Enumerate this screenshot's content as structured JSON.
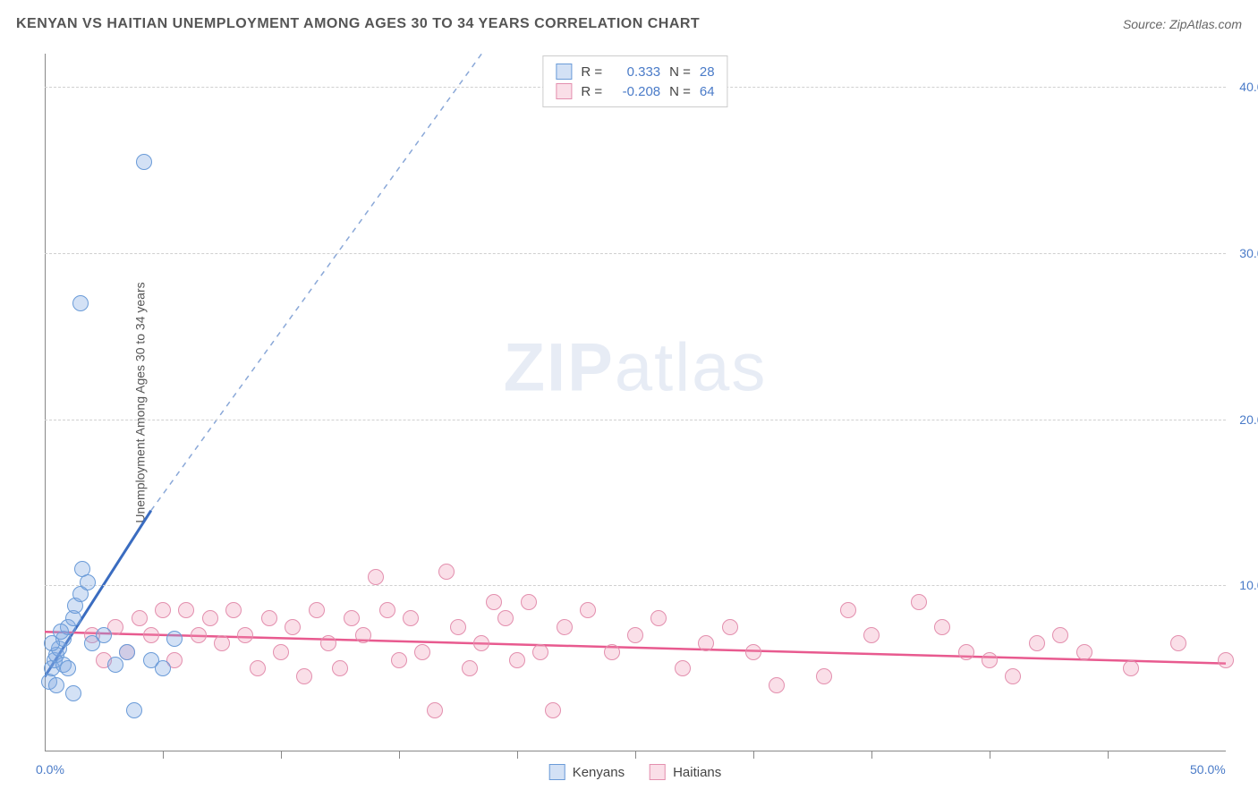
{
  "title": "KENYAN VS HAITIAN UNEMPLOYMENT AMONG AGES 30 TO 34 YEARS CORRELATION CHART",
  "source": "Source: ZipAtlas.com",
  "y_axis_label": "Unemployment Among Ages 30 to 34 years",
  "watermark": {
    "part1": "ZIP",
    "part2": "atlas"
  },
  "colors": {
    "series_a_fill": "rgba(130,170,225,0.35)",
    "series_a_stroke": "#6a9bd8",
    "series_b_fill": "rgba(240,150,180,0.30)",
    "series_b_stroke": "#e38fae",
    "trend_a": "#3a6cc0",
    "trend_a_dash": "#8aa8d8",
    "trend_b": "#e85a8f",
    "axis_text": "#4a7bc8",
    "grid": "#d0d0d0",
    "title_color": "#555555"
  },
  "chart": {
    "type": "scatter",
    "xlim": [
      0,
      50
    ],
    "ylim": [
      0,
      42
    ],
    "x_ticks": [
      0,
      50
    ],
    "x_minor_ticks": [
      5,
      10,
      15,
      20,
      25,
      30,
      35,
      40,
      45
    ],
    "y_ticks": [
      10,
      20,
      30,
      40
    ],
    "marker_radius": 9,
    "marker_stroke_width": 1.5
  },
  "series_a": {
    "name": "Kenyans",
    "r_label": "R =",
    "r_value": "0.333",
    "n_label": "N =",
    "n_value": "28",
    "points": [
      [
        0.2,
        4.2
      ],
      [
        0.3,
        5.0
      ],
      [
        0.4,
        5.5
      ],
      [
        0.5,
        5.8
      ],
      [
        0.6,
        6.2
      ],
      [
        0.8,
        6.8
      ],
      [
        1.0,
        7.5
      ],
      [
        1.2,
        8.0
      ],
      [
        1.3,
        8.8
      ],
      [
        1.5,
        9.5
      ],
      [
        1.6,
        11.0
      ],
      [
        1.8,
        10.2
      ],
      [
        2.0,
        6.5
      ],
      [
        0.5,
        4.0
      ],
      [
        0.8,
        5.2
      ],
      [
        1.0,
        5.0
      ],
      [
        2.5,
        7.0
      ],
      [
        3.0,
        5.2
      ],
      [
        3.5,
        6.0
      ],
      [
        3.8,
        2.5
      ],
      [
        4.5,
        5.5
      ],
      [
        5.0,
        5.0
      ],
      [
        5.5,
        6.8
      ],
      [
        1.2,
        3.5
      ],
      [
        0.3,
        6.5
      ],
      [
        1.5,
        27.0
      ],
      [
        4.2,
        35.5
      ],
      [
        0.7,
        7.2
      ]
    ],
    "trend": {
      "solid_from": [
        0,
        4.5
      ],
      "solid_to": [
        4.5,
        14.5
      ],
      "dash_to": [
        18.5,
        42
      ]
    }
  },
  "series_b": {
    "name": "Haitians",
    "r_label": "R =",
    "r_value": "-0.208",
    "n_label": "N =",
    "n_value": "64",
    "points": [
      [
        2.0,
        7.0
      ],
      [
        2.5,
        5.5
      ],
      [
        3.0,
        7.5
      ],
      [
        3.5,
        6.0
      ],
      [
        4.0,
        8.0
      ],
      [
        4.5,
        7.0
      ],
      [
        5.0,
        8.5
      ],
      [
        5.5,
        5.5
      ],
      [
        6.0,
        8.5
      ],
      [
        6.5,
        7.0
      ],
      [
        7.0,
        8.0
      ],
      [
        7.5,
        6.5
      ],
      [
        8.0,
        8.5
      ],
      [
        8.5,
        7.0
      ],
      [
        9.0,
        5.0
      ],
      [
        9.5,
        8.0
      ],
      [
        10.0,
        6.0
      ],
      [
        10.5,
        7.5
      ],
      [
        11.0,
        4.5
      ],
      [
        11.5,
        8.5
      ],
      [
        12.0,
        6.5
      ],
      [
        12.5,
        5.0
      ],
      [
        13.0,
        8.0
      ],
      [
        13.5,
        7.0
      ],
      [
        14.0,
        10.5
      ],
      [
        14.5,
        8.5
      ],
      [
        15.0,
        5.5
      ],
      [
        15.5,
        8.0
      ],
      [
        16.0,
        6.0
      ],
      [
        16.5,
        2.5
      ],
      [
        17.0,
        10.8
      ],
      [
        17.5,
        7.5
      ],
      [
        18.0,
        5.0
      ],
      [
        18.5,
        6.5
      ],
      [
        19.0,
        9.0
      ],
      [
        19.5,
        8.0
      ],
      [
        20.0,
        5.5
      ],
      [
        20.5,
        9.0
      ],
      [
        21.0,
        6.0
      ],
      [
        21.5,
        2.5
      ],
      [
        22.0,
        7.5
      ],
      [
        23.0,
        8.5
      ],
      [
        24.0,
        6.0
      ],
      [
        25.0,
        7.0
      ],
      [
        26.0,
        8.0
      ],
      [
        27.0,
        5.0
      ],
      [
        28.0,
        6.5
      ],
      [
        29.0,
        7.5
      ],
      [
        30.0,
        6.0
      ],
      [
        31.0,
        4.0
      ],
      [
        33.0,
        4.5
      ],
      [
        34.0,
        8.5
      ],
      [
        35.0,
        7.0
      ],
      [
        37.0,
        9.0
      ],
      [
        38.0,
        7.5
      ],
      [
        39.0,
        6.0
      ],
      [
        40.0,
        5.5
      ],
      [
        41.0,
        4.5
      ],
      [
        42.0,
        6.5
      ],
      [
        43.0,
        7.0
      ],
      [
        44.0,
        6.0
      ],
      [
        46.0,
        5.0
      ],
      [
        48.0,
        6.5
      ],
      [
        50.0,
        5.5
      ]
    ],
    "trend": {
      "from": [
        0,
        7.2
      ],
      "to": [
        50,
        5.3
      ]
    }
  }
}
